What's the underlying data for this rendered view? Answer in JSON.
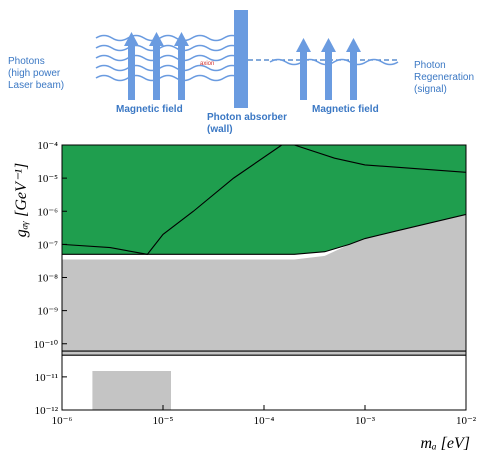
{
  "diagram": {
    "source": [
      "Photons",
      "(high power",
      "Laser beam)"
    ],
    "axion": "axion",
    "field_left": "Magnetic field",
    "absorber": [
      "Photon absorber",
      "(wall)"
    ],
    "field_right": "Magnetic field",
    "signal": [
      "Photon",
      "Regeneration",
      "(signal)"
    ]
  },
  "chart_data": {
    "type": "area",
    "xlabel": "mₐ [eV]",
    "ylabel": "gₐᵧ [GeV⁻¹]",
    "xscale": "log",
    "yscale": "log",
    "xlim": [
      1e-06,
      0.01
    ],
    "ylim": [
      1e-12,
      0.0001
    ],
    "xticks": [
      {
        "value": 1e-06,
        "label": "10⁻⁶"
      },
      {
        "value": 1e-05,
        "label": "10⁻⁵"
      },
      {
        "value": 0.0001,
        "label": "10⁻⁴"
      },
      {
        "value": 0.001,
        "label": "10⁻³"
      },
      {
        "value": 0.01,
        "label": "10⁻²"
      }
    ],
    "yticks": [
      {
        "value": 1e-12,
        "label": "10⁻¹²"
      },
      {
        "value": 1e-11,
        "label": "10⁻¹¹"
      },
      {
        "value": 1e-10,
        "label": "10⁻¹⁰"
      },
      {
        "value": 1e-09,
        "label": "10⁻⁹"
      },
      {
        "value": 1e-08,
        "label": "10⁻⁸"
      },
      {
        "value": 1e-07,
        "label": "10⁻⁷"
      },
      {
        "value": 1e-06,
        "label": "10⁻⁶"
      },
      {
        "value": 1e-05,
        "label": "10⁻⁵"
      },
      {
        "value": 0.0001,
        "label": "10⁻⁴"
      }
    ],
    "regions": [
      {
        "color": "#1f9e4e",
        "x": [
          1e-06,
          5e-05,
          0.0002,
          0.0004,
          0.0007,
          0.001,
          0.002,
          0.01
        ],
        "upper": [
          0.0001,
          0.0001,
          0.0001,
          0.0001,
          0.0001,
          0.0001,
          0.0001,
          0.0001
        ],
        "lower": [
          5e-08,
          5e-08,
          5e-08,
          6e-08,
          1e-07,
          1.5e-07,
          2.5e-07,
          8e-07
        ]
      },
      {
        "color": "#c4c4c4",
        "x": [
          1e-06,
          0.0002,
          0.0004,
          0.0007,
          0.001,
          0.002,
          0.01
        ],
        "upper": [
          3.5e-08,
          3.5e-08,
          4.5e-08,
          1e-07,
          1.5e-07,
          2.5e-07,
          8e-07
        ],
        "lower": [
          4.5e-11,
          4.5e-11,
          4.5e-11,
          4.5e-11,
          4.5e-11,
          4.5e-11,
          4.5e-11
        ]
      },
      {
        "color": "#c4c4c4",
        "x": [
          2e-06,
          1.2e-05
        ],
        "upper": [
          1.5e-11,
          1.5e-11
        ],
        "lower": [
          1e-12,
          1e-12
        ]
      }
    ],
    "series": [
      {
        "color": "#000000",
        "x": [
          1e-06,
          3e-06,
          7e-06,
          1e-05,
          2e-05,
          5e-05,
          0.00015
        ],
        "values": [
          1e-07,
          8e-08,
          5e-08,
          2e-07,
          1e-06,
          1e-05,
          0.0001
        ]
      },
      {
        "color": "#000000",
        "x": [
          0.0002,
          0.0005,
          0.001,
          0.01
        ],
        "values": [
          0.0001,
          4e-05,
          2.5e-05,
          1.5e-05
        ]
      },
      {
        "color": "#000000",
        "x": [
          1e-06,
          0.0002,
          0.0004,
          0.0007,
          0.001,
          0.002,
          0.01
        ],
        "values": [
          5e-08,
          5e-08,
          6e-08,
          1e-07,
          1.5e-07,
          2.5e-07,
          8e-07
        ]
      },
      {
        "color": "#000000",
        "x": [
          1e-06,
          0.01
        ],
        "values": [
          6e-11,
          6e-11
        ]
      },
      {
        "color": "#000000",
        "x": [
          1e-06,
          0.01
        ],
        "values": [
          4.5e-11,
          4.5e-11
        ]
      }
    ]
  }
}
